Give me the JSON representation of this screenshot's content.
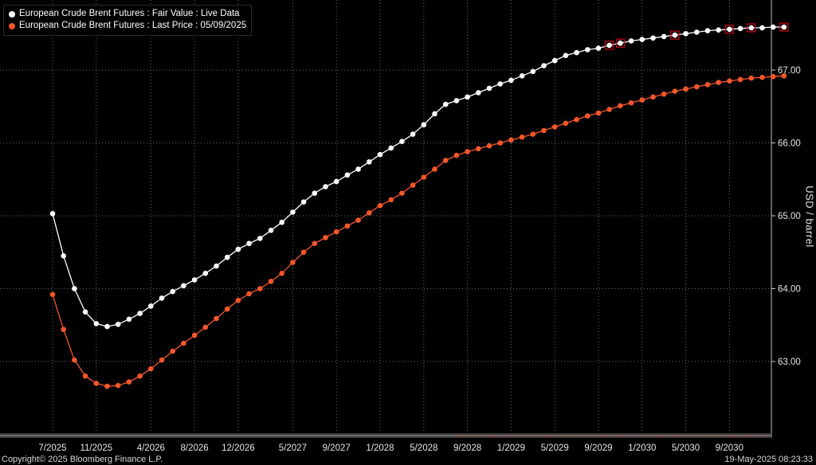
{
  "chart_data": {
    "type": "line",
    "ylabel": "USD / barrel",
    "ylim": [
      62.0,
      67.9
    ],
    "yticks": [
      "63.00",
      "64.00",
      "65.00",
      "66.00",
      "67.00"
    ],
    "xticks": [
      "7/2025",
      "11/2025",
      "4/2026",
      "8/2026",
      "12/2026",
      "5/2027",
      "9/2027",
      "1/2028",
      "5/2028",
      "9/2028",
      "1/2029",
      "5/2029",
      "9/2029",
      "1/2030",
      "5/2030",
      "9/2030"
    ],
    "grid": true,
    "legend_position": "top-left",
    "series": [
      {
        "name": "European Crude Brent Futures : Fair Value : Live Data",
        "color": "#ffffff",
        "values": [
          65.03,
          64.45,
          64.0,
          63.68,
          63.52,
          63.48,
          63.51,
          63.58,
          63.66,
          63.76,
          63.87,
          63.96,
          64.04,
          64.12,
          64.21,
          64.31,
          64.43,
          64.54,
          64.62,
          64.69,
          64.8,
          64.91,
          65.05,
          65.19,
          65.31,
          65.4,
          65.47,
          65.56,
          65.64,
          65.74,
          65.84,
          65.93,
          66.02,
          66.12,
          66.25,
          66.4,
          66.53,
          66.58,
          66.63,
          66.69,
          66.75,
          66.81,
          66.86,
          66.92,
          66.98,
          67.06,
          67.13,
          67.2,
          67.24,
          67.28,
          67.3,
          67.34,
          67.37,
          67.4,
          67.42,
          67.44,
          67.46,
          67.48,
          67.5,
          67.52,
          67.54,
          67.55,
          67.56,
          67.57,
          67.58,
          67.58,
          67.59,
          67.59
        ]
      },
      {
        "name": "European Crude Brent Futures : Last Price : 05/09/2025",
        "color": "#f4562a",
        "values": [
          63.92,
          63.44,
          63.02,
          62.8,
          62.7,
          62.66,
          62.67,
          62.72,
          62.8,
          62.9,
          63.02,
          63.14,
          63.25,
          63.36,
          63.47,
          63.59,
          63.72,
          63.84,
          63.93,
          64.0,
          64.1,
          64.21,
          64.36,
          64.5,
          64.62,
          64.7,
          64.78,
          64.86,
          64.94,
          65.04,
          65.14,
          65.22,
          65.31,
          65.42,
          65.53,
          65.64,
          65.76,
          65.83,
          65.88,
          65.92,
          65.96,
          66.0,
          66.04,
          66.08,
          66.12,
          66.17,
          66.22,
          66.27,
          66.32,
          66.37,
          66.41,
          66.46,
          66.51,
          66.55,
          66.59,
          66.63,
          66.67,
          66.71,
          66.74,
          66.77,
          66.8,
          66.83,
          66.85,
          66.87,
          66.89,
          66.9,
          66.91,
          66.92
        ]
      }
    ],
    "highlighted_points": [
      51,
      52,
      57,
      62,
      64,
      67
    ]
  },
  "legend": {
    "items": [
      {
        "label": "European Crude Brent Futures : Fair Value : Live Data",
        "color": "#ffffff"
      },
      {
        "label": "European Crude Brent Futures : Last Price : 05/09/2025",
        "color": "#f4562a"
      }
    ]
  },
  "footer": {
    "copyright": "Copyright© 2025 Bloomberg Finance L.P.",
    "timestamp": "19-May-2025 08:23:33"
  },
  "colors": {
    "background": "#000000",
    "grid": "#6a6a6a",
    "axis_text": "#e6e6e6",
    "accent_marker": "#d0021b"
  }
}
